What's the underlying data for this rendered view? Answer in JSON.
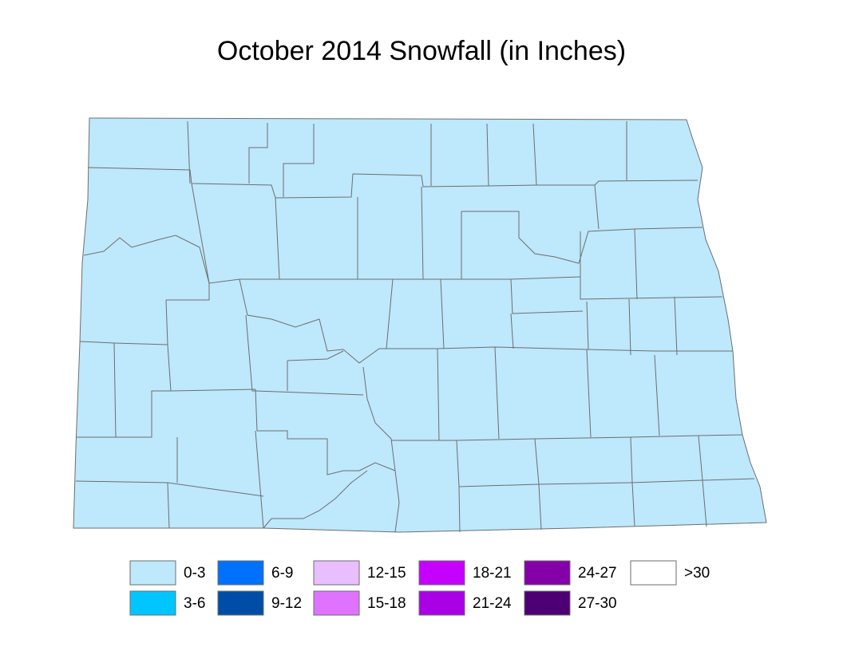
{
  "title": "October 2014 Snowfall (in Inches)",
  "legend": [
    {
      "label": "0-3",
      "color": "#bee8fc"
    },
    {
      "label": "3-6",
      "color": "#00c5ff"
    },
    {
      "label": "6-9",
      "color": "#0070ff"
    },
    {
      "label": "9-12",
      "color": "#004da8"
    },
    {
      "label": "12-15",
      "color": "#e8beff"
    },
    {
      "label": "15-18",
      "color": "#df73ff"
    },
    {
      "label": "18-21",
      "color": "#c500ff"
    },
    {
      "label": "21-24",
      "color": "#a900e6"
    },
    {
      "label": "24-27",
      "color": "#8400a8"
    },
    {
      "label": "27-30",
      "color": "#4c0073"
    },
    {
      "label": ">30",
      "color": "#ffffff"
    }
  ]
}
